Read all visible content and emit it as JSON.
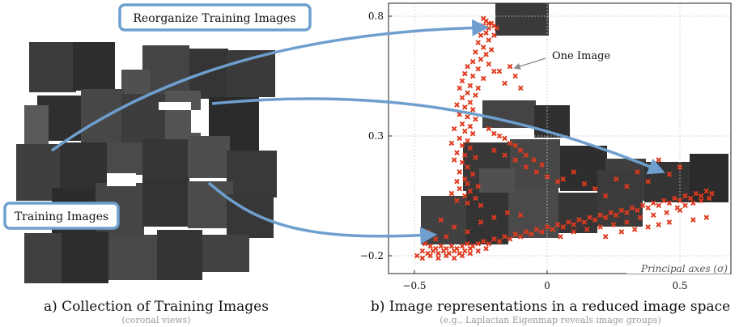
{
  "callouts": {
    "reorganize": "Reorganize Training Images",
    "training": "Training Images",
    "one_image": "One Image"
  },
  "captions": {
    "left_title": "a) Collection of Training Images",
    "left_sub": "(coronal views)",
    "right_title": "b) Image representations in a reduced image space",
    "right_sub": "(e.g., Laplacian Eigenmap reveals image groups)"
  },
  "colors": {
    "marker": "#e03a1e",
    "arrow": "#6f9fcf",
    "callout_border": "#6f9fcf"
  },
  "chart_data": {
    "type": "scatter",
    "xlabel": "Principal axes (σ)",
    "ylabel": "",
    "xlim": [
      -0.6,
      0.67
    ],
    "ylim": [
      -0.22,
      0.85
    ],
    "x_ticks": [
      -0.5,
      0,
      0.5
    ],
    "x_tick_labels": [
      "−0.5",
      "0",
      "0.5"
    ],
    "y_ticks": [
      -0.2,
      0.3,
      0.8
    ],
    "y_tick_labels": [
      "−0.2",
      "0.3",
      "0.8"
    ],
    "grid": true,
    "marker": "x",
    "points": [
      [
        -0.24,
        0.79
      ],
      [
        -0.23,
        0.78
      ],
      [
        -0.22,
        0.77
      ],
      [
        -0.21,
        0.77
      ],
      [
        -0.2,
        0.76
      ],
      [
        -0.24,
        0.76
      ],
      [
        -0.22,
        0.75
      ],
      [
        -0.19,
        0.75
      ],
      [
        -0.23,
        0.73
      ],
      [
        -0.2,
        0.72
      ],
      [
        -0.25,
        0.72
      ],
      [
        -0.22,
        0.7
      ],
      [
        -0.26,
        0.69
      ],
      [
        -0.24,
        0.67
      ],
      [
        -0.21,
        0.66
      ],
      [
        -0.27,
        0.65
      ],
      [
        -0.23,
        0.64
      ],
      [
        -0.25,
        0.62
      ],
      [
        -0.28,
        0.61
      ],
      [
        -0.22,
        0.6
      ],
      [
        -0.3,
        0.59
      ],
      [
        -0.26,
        0.58
      ],
      [
        -0.2,
        0.57
      ],
      [
        -0.31,
        0.56
      ],
      [
        -0.28,
        0.55
      ],
      [
        -0.24,
        0.54
      ],
      [
        -0.32,
        0.53
      ],
      [
        -0.29,
        0.51
      ],
      [
        -0.26,
        0.5
      ],
      [
        -0.33,
        0.5
      ],
      [
        -0.3,
        0.48
      ],
      [
        -0.27,
        0.47
      ],
      [
        -0.32,
        0.46
      ],
      [
        -0.29,
        0.44
      ],
      [
        -0.34,
        0.43
      ],
      [
        -0.31,
        0.42
      ],
      [
        -0.28,
        0.41
      ],
      [
        -0.33,
        0.39
      ],
      [
        -0.3,
        0.38
      ],
      [
        -0.27,
        0.37
      ],
      [
        -0.32,
        0.35
      ],
      [
        -0.29,
        0.34
      ],
      [
        -0.35,
        0.33
      ],
      [
        -0.31,
        0.32
      ],
      [
        -0.28,
        0.31
      ],
      [
        -0.33,
        0.29
      ],
      [
        -0.3,
        0.28
      ],
      [
        -0.36,
        0.27
      ],
      [
        -0.32,
        0.26
      ],
      [
        -0.29,
        0.25
      ],
      [
        -0.34,
        0.23
      ],
      [
        -0.31,
        0.22
      ],
      [
        -0.27,
        0.21
      ],
      [
        -0.35,
        0.2
      ],
      [
        -0.32,
        0.19
      ],
      [
        -0.3,
        0.17
      ],
      [
        -0.33,
        0.15
      ],
      [
        -0.28,
        0.14
      ],
      [
        -0.31,
        0.12
      ],
      [
        -0.34,
        0.11
      ],
      [
        -0.3,
        0.1
      ],
      [
        -0.26,
        0.09
      ],
      [
        -0.33,
        0.08
      ],
      [
        -0.29,
        0.07
      ],
      [
        -0.36,
        0.06
      ],
      [
        -0.31,
        0.05
      ],
      [
        -0.27,
        0.04
      ],
      [
        -0.34,
        0.03
      ],
      [
        -0.3,
        0.02
      ],
      [
        -0.25,
        0.01
      ],
      [
        -0.14,
        0.59
      ],
      [
        -0.18,
        0.57
      ],
      [
        -0.12,
        0.55
      ],
      [
        -0.16,
        0.52
      ],
      [
        -0.1,
        0.5
      ],
      [
        -0.22,
        0.33
      ],
      [
        -0.2,
        0.31
      ],
      [
        -0.18,
        0.3
      ],
      [
        -0.16,
        0.29
      ],
      [
        -0.14,
        0.27
      ],
      [
        -0.12,
        0.26
      ],
      [
        -0.1,
        0.24
      ],
      [
        -0.08,
        0.22
      ],
      [
        -0.05,
        0.2
      ],
      [
        -0.02,
        0.18
      ],
      [
        -0.2,
        0.24
      ],
      [
        -0.16,
        0.22
      ],
      [
        -0.12,
        0.2
      ],
      [
        -0.08,
        0.17
      ],
      [
        -0.04,
        0.15
      ],
      [
        0.0,
        0.13
      ],
      [
        0.04,
        0.11
      ],
      [
        -0.46,
        -0.15
      ],
      [
        -0.44,
        -0.16
      ],
      [
        -0.42,
        -0.17
      ],
      [
        -0.4,
        -0.16
      ],
      [
        -0.38,
        -0.17
      ],
      [
        -0.36,
        -0.16
      ],
      [
        -0.34,
        -0.17
      ],
      [
        -0.32,
        -0.16
      ],
      [
        -0.3,
        -0.15
      ],
      [
        -0.28,
        -0.16
      ],
      [
        -0.47,
        -0.18
      ],
      [
        -0.45,
        -0.19
      ],
      [
        -0.43,
        -0.18
      ],
      [
        -0.41,
        -0.19
      ],
      [
        -0.39,
        -0.18
      ],
      [
        -0.37,
        -0.19
      ],
      [
        -0.35,
        -0.18
      ],
      [
        -0.33,
        -0.19
      ],
      [
        -0.31,
        -0.18
      ],
      [
        -0.29,
        -0.17
      ],
      [
        -0.26,
        -0.15
      ],
      [
        -0.24,
        -0.14
      ],
      [
        -0.22,
        -0.15
      ],
      [
        -0.2,
        -0.13
      ],
      [
        -0.18,
        -0.14
      ],
      [
        -0.16,
        -0.12
      ],
      [
        -0.14,
        -0.13
      ],
      [
        -0.12,
        -0.11
      ],
      [
        -0.1,
        -0.12
      ],
      [
        -0.08,
        -0.1
      ],
      [
        -0.06,
        -0.11
      ],
      [
        -0.04,
        -0.09
      ],
      [
        -0.02,
        -0.1
      ],
      [
        0.0,
        -0.08
      ],
      [
        0.02,
        -0.09
      ],
      [
        0.04,
        -0.07
      ],
      [
        0.06,
        -0.08
      ],
      [
        0.08,
        -0.06
      ],
      [
        0.1,
        -0.07
      ],
      [
        0.12,
        -0.05
      ],
      [
        0.14,
        -0.06
      ],
      [
        0.16,
        -0.04
      ],
      [
        0.18,
        -0.05
      ],
      [
        0.2,
        -0.03
      ],
      [
        0.22,
        -0.04
      ],
      [
        0.24,
        -0.02
      ],
      [
        0.26,
        -0.03
      ],
      [
        0.28,
        -0.01
      ],
      [
        0.3,
        -0.02
      ],
      [
        0.32,
        0.0
      ],
      [
        0.34,
        -0.01
      ],
      [
        0.36,
        0.01
      ],
      [
        0.38,
        0.0
      ],
      [
        0.4,
        0.02
      ],
      [
        0.42,
        0.01
      ],
      [
        0.44,
        0.03
      ],
      [
        0.46,
        0.02
      ],
      [
        0.48,
        0.04
      ],
      [
        0.5,
        0.03
      ],
      [
        0.52,
        0.05
      ],
      [
        0.54,
        0.04
      ],
      [
        0.56,
        0.06
      ],
      [
        0.58,
        0.05
      ],
      [
        0.6,
        0.07
      ],
      [
        0.62,
        0.06
      ],
      [
        0.49,
        0.0
      ],
      [
        0.52,
        0.01
      ],
      [
        0.55,
        0.02
      ],
      [
        0.58,
        0.03
      ],
      [
        0.61,
        0.04
      ],
      [
        0.35,
        -0.04
      ],
      [
        0.3,
        -0.06
      ],
      [
        0.25,
        -0.07
      ],
      [
        0.2,
        -0.08
      ],
      [
        0.15,
        -0.09
      ],
      [
        0.1,
        -0.1
      ],
      [
        0.05,
        -0.12
      ],
      [
        0.4,
        -0.03
      ],
      [
        0.45,
        -0.02
      ],
      [
        0.5,
        -0.01
      ],
      [
        0.38,
        -0.08
      ],
      [
        0.42,
        -0.07
      ],
      [
        0.46,
        -0.06
      ],
      [
        0.33,
        -0.09
      ],
      [
        0.28,
        -0.1
      ],
      [
        0.22,
        -0.12
      ],
      [
        0.55,
        -0.05
      ],
      [
        0.6,
        -0.04
      ],
      [
        0.18,
        0.08
      ],
      [
        0.22,
        0.05
      ],
      [
        0.26,
        0.12
      ],
      [
        0.3,
        0.09
      ],
      [
        0.34,
        0.15
      ],
      [
        0.38,
        0.11
      ],
      [
        0.14,
        0.1
      ],
      [
        0.1,
        0.15
      ],
      [
        0.06,
        0.12
      ],
      [
        0.42,
        0.2
      ],
      [
        0.46,
        0.14
      ],
      [
        0.5,
        0.17
      ],
      [
        -0.4,
        -0.05
      ],
      [
        -0.35,
        -0.08
      ],
      [
        -0.25,
        -0.06
      ],
      [
        -0.2,
        -0.04
      ],
      [
        -0.15,
        -0.02
      ],
      [
        -0.1,
        -0.03
      ],
      [
        -0.45,
        -0.1
      ],
      [
        -0.42,
        -0.13
      ],
      [
        -0.38,
        -0.12
      ],
      [
        -0.3,
        -0.1
      ],
      [
        -0.49,
        -0.2
      ],
      [
        -0.47,
        -0.21
      ],
      [
        -0.44,
        -0.2
      ],
      [
        -0.41,
        -0.21
      ],
      [
        -0.38,
        -0.2
      ],
      [
        -0.35,
        -0.21
      ],
      [
        -0.32,
        -0.2
      ],
      [
        -0.29,
        -0.19
      ],
      [
        -0.26,
        -0.18
      ],
      [
        -0.23,
        -0.17
      ]
    ]
  }
}
